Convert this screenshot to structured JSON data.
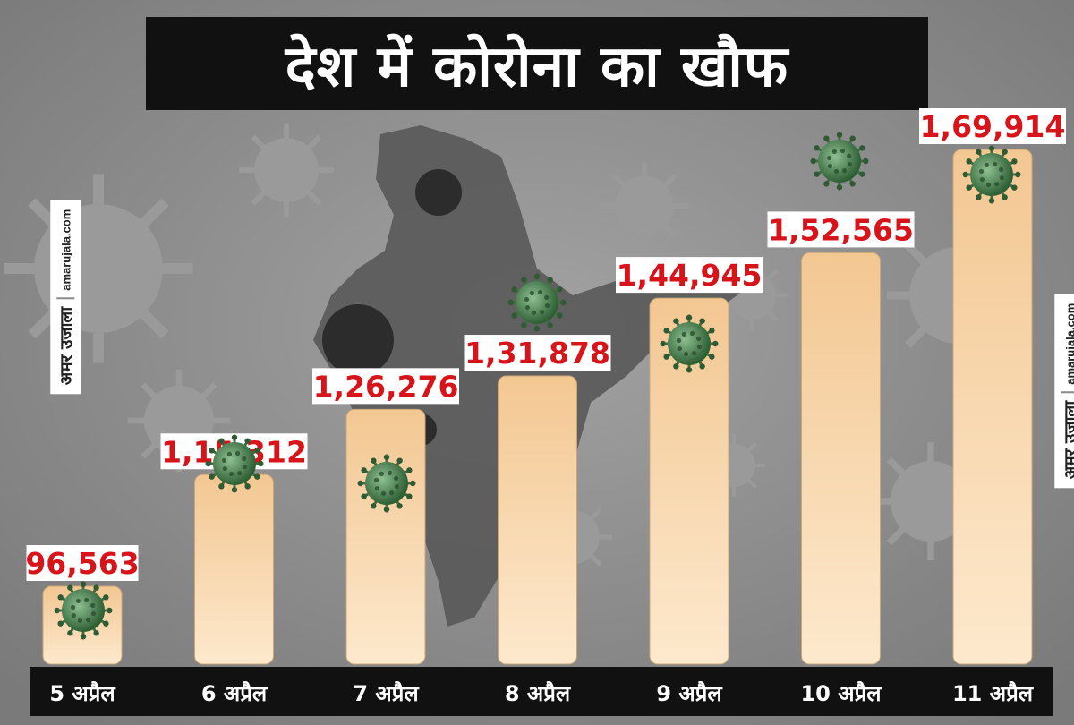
{
  "title": "देश में कोरोना का खौफ",
  "watermark": {
    "logo": "अमर उजाला",
    "site": "amarujala.com"
  },
  "colors": {
    "bar_fill_top": "#f3c792",
    "bar_fill_bottom": "#fde9cd",
    "value_text": "#d8141b",
    "label_bar": "#111111",
    "title_bg": "#111111"
  },
  "icons": [
    "coronavirus-icon",
    "india-map-silhouette"
  ],
  "chart_data": {
    "type": "bar",
    "categories": [
      "5 अप्रैल",
      "6 अप्रैल",
      "7 अप्रैल",
      "8 अप्रैल",
      "9 अप्रैल",
      "10 अप्रैल",
      "11 अप्रैल"
    ],
    "values": [
      96563,
      115312,
      126276,
      131878,
      144945,
      152565,
      169914
    ],
    "value_labels": [
      "96,563",
      "1,15,312",
      "1,26,276",
      "1,31,878",
      "1,44,945",
      "1,52,565",
      "1,69,914"
    ],
    "title": "देश में कोरोना का खौफ",
    "xlabel": "",
    "ylabel": "",
    "grid": false,
    "legend": "none"
  }
}
